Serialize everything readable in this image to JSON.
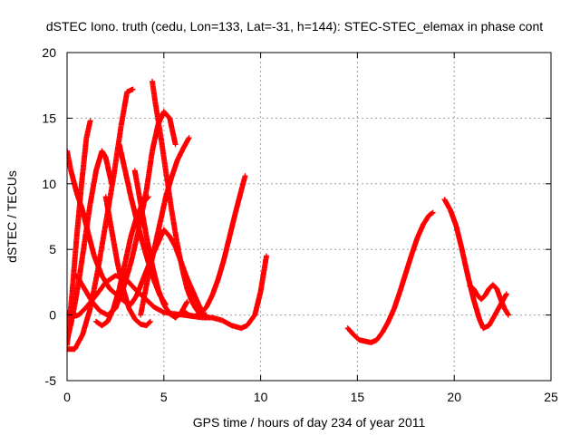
{
  "chart_data": {
    "type": "scatter",
    "title": "dSTEC Iono. truth (cedu, Lon=133, Lat=-31, h=144): STEC-STEC_elemax in phase cont",
    "xlabel": "GPS time / hours of day 234 of year 2011",
    "ylabel": "dSTEC  / TECUs",
    "xlim": [
      0,
      25
    ],
    "ylim": [
      -5,
      20
    ],
    "xticks": [
      0,
      5,
      10,
      15,
      20,
      25
    ],
    "yticks": [
      -5,
      0,
      5,
      10,
      15,
      20
    ],
    "grid": true,
    "marker": "+",
    "color": "#ff0000",
    "series": [
      {
        "x": [
          0.0,
          0.3,
          0.6,
          1.0,
          1.5,
          2.0,
          2.5,
          3.0,
          3.5,
          4.0,
          4.5,
          5.0,
          5.5,
          6.0,
          6.5,
          7.0,
          7.5,
          8.0,
          8.5,
          9.0,
          9.3,
          9.7,
          10.0,
          10.3
        ],
        "y": [
          0.2,
          -0.1,
          0.0,
          0.6,
          1.5,
          2.5,
          3.0,
          2.8,
          2.0,
          1.3,
          0.6,
          0.2,
          0.1,
          0.0,
          -0.1,
          -0.2,
          -0.2,
          -0.4,
          -0.8,
          -1.0,
          -0.8,
          0.0,
          1.8,
          4.5
        ]
      },
      {
        "x": [
          0.0,
          0.2,
          0.5,
          0.8,
          1.1,
          1.4,
          1.8,
          2.2,
          2.6,
          3.0,
          3.3,
          3.6,
          4.0,
          4.4,
          4.7,
          5.0,
          5.3,
          5.6,
          5.9,
          6.2,
          6.5,
          6.8,
          7.0
        ],
        "y": [
          12.5,
          11.0,
          9.3,
          8.0,
          6.2,
          4.5,
          3.0,
          2.0,
          1.5,
          1.0,
          0.8,
          1.5,
          3.0,
          4.5,
          5.5,
          6.5,
          6.0,
          5.2,
          4.0,
          2.8,
          1.8,
          0.8,
          0.2
        ]
      },
      {
        "x": [
          0.0,
          0.3,
          0.6,
          0.9,
          1.2,
          1.5,
          1.8,
          2.0,
          2.3
        ],
        "y": [
          -2.0,
          0.0,
          2.5,
          5.5,
          8.5,
          11.0,
          12.5,
          12.0,
          10.0
        ]
      },
      {
        "x": [
          0.0,
          0.25,
          0.5,
          0.75,
          1.0,
          1.2
        ],
        "y": [
          -2.3,
          1.5,
          6.0,
          10.0,
          13.5,
          14.8
        ]
      },
      {
        "x": [
          0.0,
          0.4,
          0.8,
          1.2,
          1.6,
          2.0,
          2.4,
          2.8,
          3.1,
          3.4
        ],
        "y": [
          -2.6,
          -2.6,
          -1.5,
          0.5,
          3.5,
          7.0,
          10.5,
          14.5,
          17.0,
          17.2
        ]
      },
      {
        "x": [
          0.5,
          0.9,
          1.3,
          1.7,
          2.1,
          2.5,
          2.9,
          3.3,
          3.7,
          4.1,
          4.4,
          4.7,
          5.0,
          5.3,
          5.6
        ],
        "y": [
          3.0,
          2.0,
          1.0,
          0.3,
          0.0,
          0.5,
          2.0,
          4.0,
          6.5,
          9.5,
          12.5,
          14.5,
          15.5,
          15.0,
          13.0
        ]
      },
      {
        "x": [
          4.4,
          4.6,
          4.8,
          5.0,
          5.2,
          5.4,
          5.6,
          5.8,
          6.0,
          6.2,
          6.4,
          6.6,
          6.8,
          7.0,
          7.2
        ],
        "y": [
          17.8,
          15.8,
          14.0,
          12.0,
          10.0,
          8.0,
          6.2,
          4.6,
          3.2,
          2.0,
          1.2,
          0.6,
          0.2,
          0.0,
          0.0
        ]
      },
      {
        "x": [
          2.0,
          2.3,
          2.6,
          2.9,
          3.2,
          3.5,
          3.8,
          4.1,
          4.3
        ],
        "y": [
          9.0,
          6.5,
          4.0,
          2.0,
          0.5,
          -0.3,
          -0.7,
          -0.8,
          -0.5
        ]
      },
      {
        "x": [
          3.8,
          4.0,
          4.2,
          4.5,
          4.8,
          5.1,
          5.4,
          5.7,
          6.0,
          6.3
        ],
        "y": [
          0.0,
          1.5,
          3.0,
          5.0,
          7.0,
          9.0,
          10.5,
          11.8,
          12.7,
          13.5
        ]
      },
      {
        "x": [
          2.7,
          3.0,
          3.3,
          3.6,
          3.9,
          4.2,
          4.5,
          4.8,
          5.1
        ],
        "y": [
          13.0,
          11.0,
          9.0,
          7.2,
          5.5,
          4.0,
          2.6,
          1.5,
          0.8
        ]
      },
      {
        "x": [
          6.0,
          6.3,
          6.6,
          6.9,
          7.2,
          7.5,
          7.8,
          8.1,
          8.4,
          8.7,
          9.0,
          9.2
        ],
        "y": [
          0.3,
          0.0,
          -0.1,
          0.1,
          0.6,
          1.5,
          2.7,
          4.2,
          6.0,
          7.8,
          9.5,
          10.6
        ]
      },
      {
        "x": [
          3.5,
          3.8,
          4.1,
          4.4,
          4.7,
          5.0,
          5.3,
          5.6,
          5.9,
          6.2
        ],
        "y": [
          11.0,
          8.5,
          6.0,
          3.8,
          2.0,
          0.8,
          0.1,
          -0.2,
          0.2,
          1.0
        ]
      },
      {
        "x": [
          1.5,
          1.8,
          2.1,
          2.4,
          2.7,
          3.0,
          3.3,
          3.6,
          3.9,
          4.2
        ],
        "y": [
          -0.5,
          -0.8,
          -0.5,
          0.5,
          2.0,
          4.0,
          6.0,
          7.5,
          8.5,
          9.0
        ]
      },
      {
        "x": [
          14.5,
          14.8,
          15.1,
          15.4,
          15.7,
          16.0,
          16.3,
          16.6,
          16.9,
          17.2,
          17.5,
          17.8,
          18.1,
          18.4,
          18.7,
          18.9
        ],
        "y": [
          -1.0,
          -1.5,
          -1.9,
          -2.0,
          -2.1,
          -1.9,
          -1.3,
          -0.5,
          0.5,
          1.8,
          3.2,
          4.6,
          5.9,
          6.9,
          7.6,
          7.8
        ]
      },
      {
        "x": [
          19.5,
          19.8,
          20.1,
          20.4,
          20.7,
          21.0,
          21.3,
          21.5,
          21.8,
          22.1,
          22.4,
          22.7
        ],
        "y": [
          8.8,
          8.0,
          6.8,
          5.0,
          3.0,
          1.2,
          -0.3,
          -1.0,
          -0.8,
          0.0,
          0.8,
          1.6
        ]
      },
      {
        "x": [
          20.8,
          21.0,
          21.2,
          21.4,
          21.6,
          21.8,
          22.0,
          22.2,
          22.4,
          22.6,
          22.8
        ],
        "y": [
          2.2,
          2.0,
          1.5,
          1.2,
          1.5,
          2.0,
          2.3,
          2.0,
          1.2,
          0.5,
          0.0
        ]
      }
    ]
  }
}
